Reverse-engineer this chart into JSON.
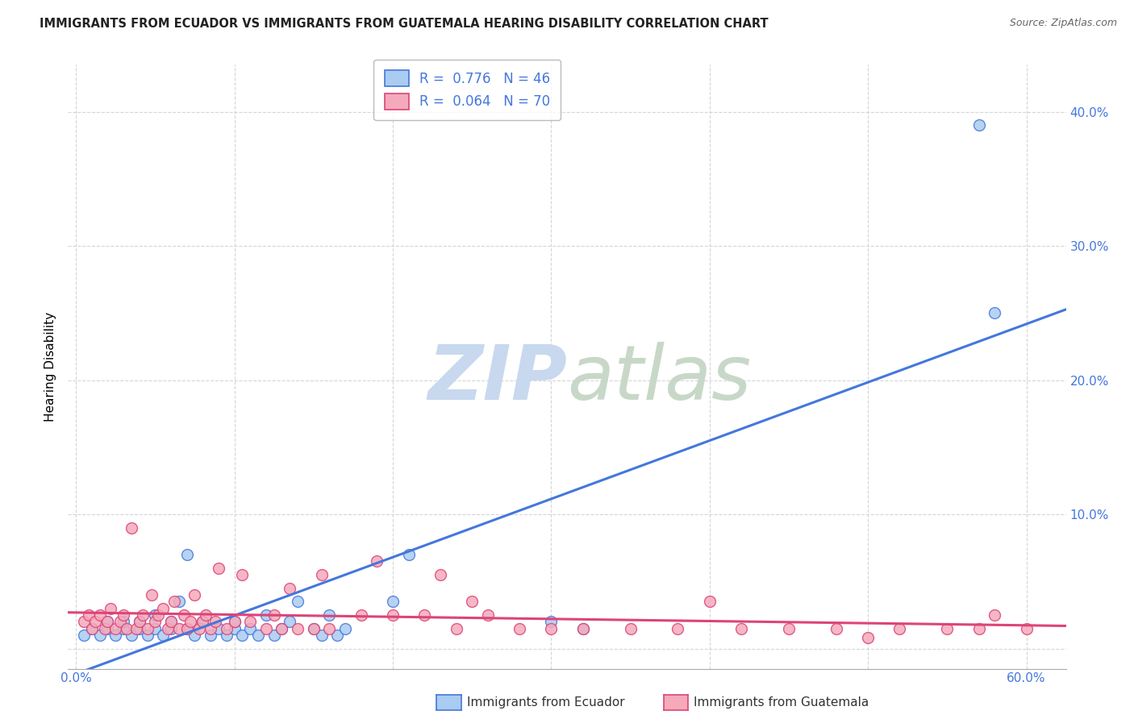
{
  "title": "IMMIGRANTS FROM ECUADOR VS IMMIGRANTS FROM GUATEMALA HEARING DISABILITY CORRELATION CHART",
  "source": "Source: ZipAtlas.com",
  "ylabel": "Hearing Disability",
  "ecuador_R": 0.776,
  "ecuador_N": 46,
  "guatemala_R": 0.064,
  "guatemala_N": 70,
  "ecuador_color": "#aaccf0",
  "ecuador_line_color": "#4477dd",
  "guatemala_color": "#f4aabb",
  "guatemala_line_color": "#dd4477",
  "background_color": "#ffffff",
  "watermark_zip": "ZIP",
  "watermark_atlas": "atlas",
  "watermark_color_zip": "#c8d8ee",
  "watermark_color_atlas": "#c8d8c8",
  "legend_label_ecuador": "Immigrants from Ecuador",
  "legend_label_guatemala": "Immigrants from Guatemala",
  "xlim": [
    -0.005,
    0.625
  ],
  "ylim": [
    -0.015,
    0.435
  ],
  "yticks": [
    0.0,
    0.1,
    0.2,
    0.3,
    0.4
  ],
  "xticks": [
    0.0,
    0.1,
    0.2,
    0.3,
    0.4,
    0.5,
    0.6
  ],
  "ecuador_scatter_x": [
    0.005,
    0.01,
    0.015,
    0.02,
    0.02,
    0.025,
    0.03,
    0.03,
    0.035,
    0.04,
    0.04,
    0.045,
    0.05,
    0.05,
    0.055,
    0.06,
    0.06,
    0.065,
    0.07,
    0.07,
    0.075,
    0.08,
    0.085,
    0.09,
    0.095,
    0.1,
    0.1,
    0.105,
    0.11,
    0.115,
    0.12,
    0.125,
    0.13,
    0.135,
    0.14,
    0.15,
    0.155,
    0.16,
    0.165,
    0.17,
    0.2,
    0.21,
    0.3,
    0.32,
    0.57,
    0.58
  ],
  "ecuador_scatter_y": [
    0.01,
    0.015,
    0.01,
    0.015,
    0.02,
    0.01,
    0.015,
    0.02,
    0.01,
    0.015,
    0.02,
    0.01,
    0.015,
    0.025,
    0.01,
    0.015,
    0.02,
    0.035,
    0.015,
    0.07,
    0.01,
    0.02,
    0.01,
    0.015,
    0.01,
    0.015,
    0.02,
    0.01,
    0.015,
    0.01,
    0.025,
    0.01,
    0.015,
    0.02,
    0.035,
    0.015,
    0.01,
    0.025,
    0.01,
    0.015,
    0.035,
    0.07,
    0.02,
    0.015,
    0.39,
    0.25
  ],
  "guatemala_scatter_x": [
    0.005,
    0.008,
    0.01,
    0.012,
    0.015,
    0.018,
    0.02,
    0.022,
    0.025,
    0.028,
    0.03,
    0.032,
    0.035,
    0.038,
    0.04,
    0.042,
    0.045,
    0.048,
    0.05,
    0.052,
    0.055,
    0.058,
    0.06,
    0.062,
    0.065,
    0.068,
    0.07,
    0.072,
    0.075,
    0.078,
    0.08,
    0.082,
    0.085,
    0.088,
    0.09,
    0.095,
    0.1,
    0.105,
    0.11,
    0.12,
    0.125,
    0.13,
    0.135,
    0.14,
    0.15,
    0.155,
    0.16,
    0.18,
    0.19,
    0.2,
    0.22,
    0.23,
    0.24,
    0.25,
    0.26,
    0.28,
    0.3,
    0.32,
    0.35,
    0.38,
    0.4,
    0.42,
    0.45,
    0.48,
    0.5,
    0.52,
    0.55,
    0.57,
    0.58,
    0.6
  ],
  "guatemala_scatter_y": [
    0.02,
    0.025,
    0.015,
    0.02,
    0.025,
    0.015,
    0.02,
    0.03,
    0.015,
    0.02,
    0.025,
    0.015,
    0.09,
    0.015,
    0.02,
    0.025,
    0.015,
    0.04,
    0.02,
    0.025,
    0.03,
    0.015,
    0.02,
    0.035,
    0.015,
    0.025,
    0.015,
    0.02,
    0.04,
    0.015,
    0.02,
    0.025,
    0.015,
    0.02,
    0.06,
    0.015,
    0.02,
    0.055,
    0.02,
    0.015,
    0.025,
    0.015,
    0.045,
    0.015,
    0.015,
    0.055,
    0.015,
    0.025,
    0.065,
    0.025,
    0.025,
    0.055,
    0.015,
    0.035,
    0.025,
    0.015,
    0.015,
    0.015,
    0.015,
    0.015,
    0.035,
    0.015,
    0.015,
    0.015,
    0.008,
    0.015,
    0.015,
    0.015,
    0.025,
    0.015
  ]
}
